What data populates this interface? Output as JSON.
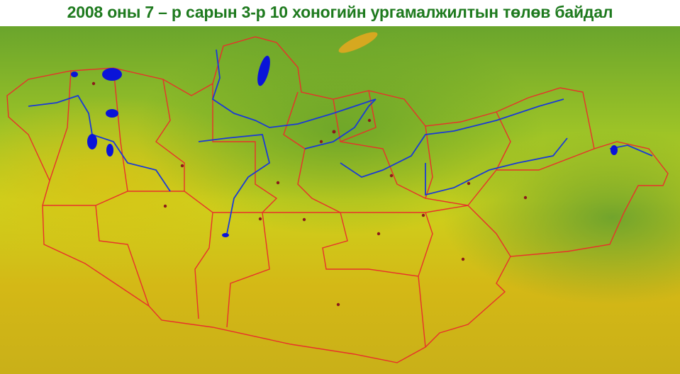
{
  "title": "2008 оны 7 – р сарын 3-р 10 хоногийн ургамалжилтын төлөв байдал",
  "map": {
    "subject": "vegetation condition (NDVI) map of Mongolia",
    "colors": {
      "dense_vegetation": "#5f9e2a",
      "medium_vegetation": "#b5cc1a",
      "sparse_vegetation": "#d2b814",
      "boundaries": "#e8302a",
      "water": "#0a14d8",
      "settlement": "#8b1a1a"
    }
  }
}
